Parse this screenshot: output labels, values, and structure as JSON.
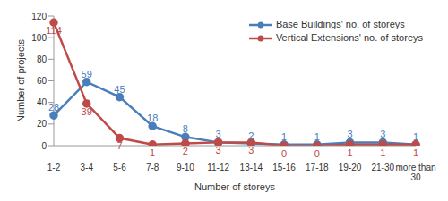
{
  "chart_data": {
    "type": "line",
    "x_label": "Number of storeys",
    "y_label": "Number of projects",
    "categories": [
      "1-2",
      "3-4",
      "5-6",
      "7-8",
      "9-10",
      "11-12",
      "13-14",
      "15-16",
      "17-18",
      "19-20",
      "21-30",
      "more than 30"
    ],
    "series": [
      {
        "name": "Base Buildings' no. of storeys",
        "color": "#4a7ebb",
        "marker": "circle",
        "values": [
          28,
          59,
          45,
          18,
          8,
          3,
          2,
          1,
          1,
          3,
          3,
          1
        ]
      },
      {
        "name": "Vertical Extensions' no. of storeys",
        "color": "#be4b48",
        "marker": "circle",
        "values": [
          114,
          39,
          7,
          1,
          2,
          3,
          3,
          0,
          0,
          1,
          1,
          1
        ]
      }
    ],
    "ylim": [
      0,
      120
    ],
    "yticks": [
      0,
      20,
      40,
      60,
      80,
      100,
      120
    ],
    "grid": false,
    "legend": "upper right",
    "data_labels": true
  }
}
